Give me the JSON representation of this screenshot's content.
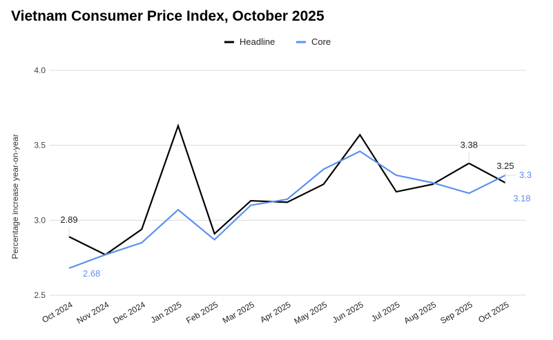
{
  "chart_data": {
    "type": "line",
    "title": "Vietnam Consumer Price Index, October 2025",
    "ylabel": "Percentage increase year-on-year",
    "xlabel": "",
    "ylim": [
      2.5,
      4.0
    ],
    "yticks": [
      "2.5",
      "3.0",
      "3.5",
      "4.0"
    ],
    "grid": true,
    "legend_placement": "top-center",
    "categories": [
      "Oct 2024",
      "Nov 2024",
      "Dec 2024",
      "Jan 2025",
      "Feb 2025",
      "Mar 2025",
      "Apr 2025",
      "May 2025",
      "Jun 2025",
      "Jul 2025",
      "Aug 2025",
      "Sep 2025",
      "Oct 2025"
    ],
    "series": [
      {
        "name": "Headline",
        "color": "#000000",
        "values": [
          2.89,
          2.77,
          2.94,
          3.63,
          2.91,
          3.13,
          3.12,
          3.24,
          3.57,
          3.19,
          3.24,
          3.38,
          3.25
        ],
        "labels": [
          {
            "index": 0,
            "text": "2.89"
          },
          {
            "index": 11,
            "text": "3.38"
          },
          {
            "index": 12,
            "text": "3.25"
          }
        ]
      },
      {
        "name": "Core",
        "color": "#5b8ff0",
        "values": [
          2.68,
          2.77,
          2.85,
          3.07,
          2.87,
          3.1,
          3.14,
          3.34,
          3.46,
          3.3,
          3.25,
          3.18,
          3.3
        ],
        "labels": [
          {
            "index": 0,
            "text": "2.68"
          },
          {
            "index": 11,
            "text": "3.18"
          },
          {
            "index": 12,
            "text": "3.3"
          }
        ]
      }
    ]
  }
}
